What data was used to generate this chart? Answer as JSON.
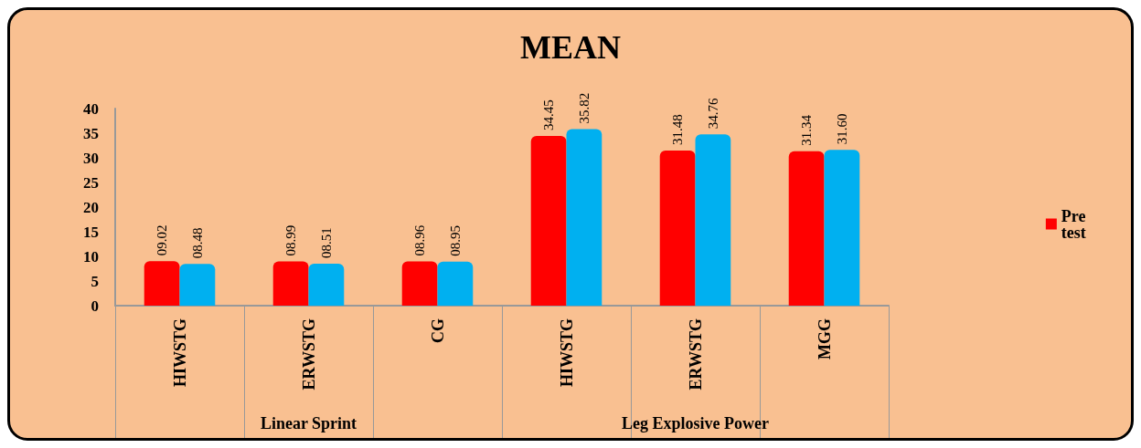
{
  "chart_data": {
    "type": "bar",
    "title": "MEAN",
    "categories": [
      "HIWSTG",
      "ERWSTG",
      "CG",
      "HIWSTG",
      "ERWSTG",
      "MGG"
    ],
    "series": [
      {
        "name": "Pre test",
        "color": "#ff0000",
        "values": [
          9.02,
          8.99,
          8.96,
          34.45,
          31.48,
          31.34
        ],
        "value_labels": [
          "09.02",
          "08.99",
          "08.96",
          "34.45",
          "31.48",
          "31.34"
        ]
      },
      {
        "color": "#00b0f0",
        "values": [
          8.48,
          8.51,
          8.95,
          35.82,
          34.76,
          31.6
        ],
        "value_labels": [
          "08.48",
          "08.51",
          "08.95",
          "35.82",
          "34.76",
          "31.60"
        ]
      }
    ],
    "annotations": [
      "Linear Sprint",
      "Leg Explosive Power"
    ],
    "ylim": [
      0,
      40
    ],
    "yticks": [
      0,
      5,
      10,
      15,
      20,
      25,
      30,
      35,
      40
    ],
    "grid": false,
    "legend": "right"
  }
}
